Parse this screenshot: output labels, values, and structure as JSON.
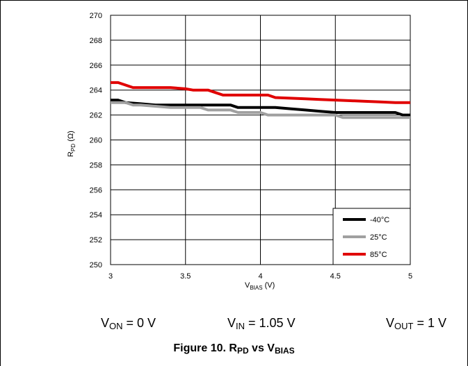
{
  "chart_data": {
    "type": "line",
    "title": "",
    "xlabel": {
      "main": "V",
      "sub": "BIAS",
      "unit": " (V)"
    },
    "ylabel": {
      "main": "R",
      "sub": "PD",
      "unit": " (Ω)"
    },
    "xlim": [
      3,
      5
    ],
    "ylim": [
      250,
      270
    ],
    "x_ticks": [
      3,
      3.5,
      4,
      4.5,
      5
    ],
    "x_tick_labels": [
      "3",
      "3.5",
      "4",
      "4.5",
      "5"
    ],
    "y_ticks": [
      250,
      252,
      254,
      256,
      258,
      260,
      262,
      264,
      266,
      268,
      270
    ],
    "y_tick_labels": [
      "250",
      "252",
      "254",
      "256",
      "258",
      "260",
      "262",
      "264",
      "266",
      "268",
      "270"
    ],
    "grid": true,
    "legend_position": "bottom-right",
    "series": [
      {
        "name": "-40°C",
        "color": "#000000",
        "x": [
          3.0,
          3.05,
          3.1,
          3.2,
          3.3,
          3.4,
          3.5,
          3.6,
          3.7,
          3.8,
          3.85,
          3.9,
          4.0,
          4.1,
          4.2,
          4.3,
          4.4,
          4.5,
          4.6,
          4.7,
          4.8,
          4.9,
          4.95,
          5.0
        ],
        "y": [
          263.2,
          263.2,
          263.0,
          262.9,
          262.8,
          262.8,
          262.8,
          262.8,
          262.8,
          262.8,
          262.6,
          262.6,
          262.6,
          262.6,
          262.5,
          262.4,
          262.3,
          262.2,
          262.2,
          262.2,
          262.2,
          262.2,
          262.0,
          262.0
        ]
      },
      {
        "name": "25°C",
        "color": "#a0a0a0",
        "x": [
          3.0,
          3.05,
          3.1,
          3.15,
          3.2,
          3.3,
          3.4,
          3.5,
          3.6,
          3.65,
          3.7,
          3.8,
          3.85,
          3.9,
          4.0,
          4.05,
          4.1,
          4.2,
          4.3,
          4.4,
          4.5,
          4.55,
          4.6,
          4.7,
          4.8,
          4.9,
          5.0
        ],
        "y": [
          263.0,
          263.0,
          263.0,
          262.8,
          262.8,
          262.7,
          262.6,
          262.6,
          262.6,
          262.4,
          262.4,
          262.4,
          262.2,
          262.2,
          262.2,
          262.0,
          262.0,
          262.0,
          262.0,
          262.0,
          262.0,
          261.8,
          261.8,
          261.8,
          261.8,
          261.8,
          261.8
        ]
      },
      {
        "name": "85°C",
        "color": "#e00000",
        "x": [
          3.0,
          3.05,
          3.1,
          3.15,
          3.2,
          3.3,
          3.4,
          3.5,
          3.55,
          3.6,
          3.65,
          3.7,
          3.75,
          3.8,
          3.9,
          4.0,
          4.05,
          4.1,
          4.2,
          4.3,
          4.4,
          4.5,
          4.6,
          4.7,
          4.8,
          4.9,
          5.0
        ],
        "y": [
          264.6,
          264.6,
          264.4,
          264.2,
          264.2,
          264.2,
          264.2,
          264.1,
          264.0,
          264.0,
          264.0,
          263.8,
          263.6,
          263.6,
          263.6,
          263.6,
          263.6,
          263.4,
          263.35,
          263.3,
          263.25,
          263.2,
          263.15,
          263.1,
          263.05,
          263.0,
          263.0
        ]
      }
    ]
  },
  "conditions": [
    {
      "main": "V",
      "sub": "ON",
      "rest": " = 0 V"
    },
    {
      "main": "V",
      "sub": "IN",
      "rest": " = 1.05 V"
    },
    {
      "main": "V",
      "sub": "OUT",
      "rest": " = 1 V"
    }
  ],
  "caption": {
    "prefix": "Figure 10. R",
    "sub1": "PD",
    "middle": " vs V",
    "sub2": "BIAS"
  }
}
